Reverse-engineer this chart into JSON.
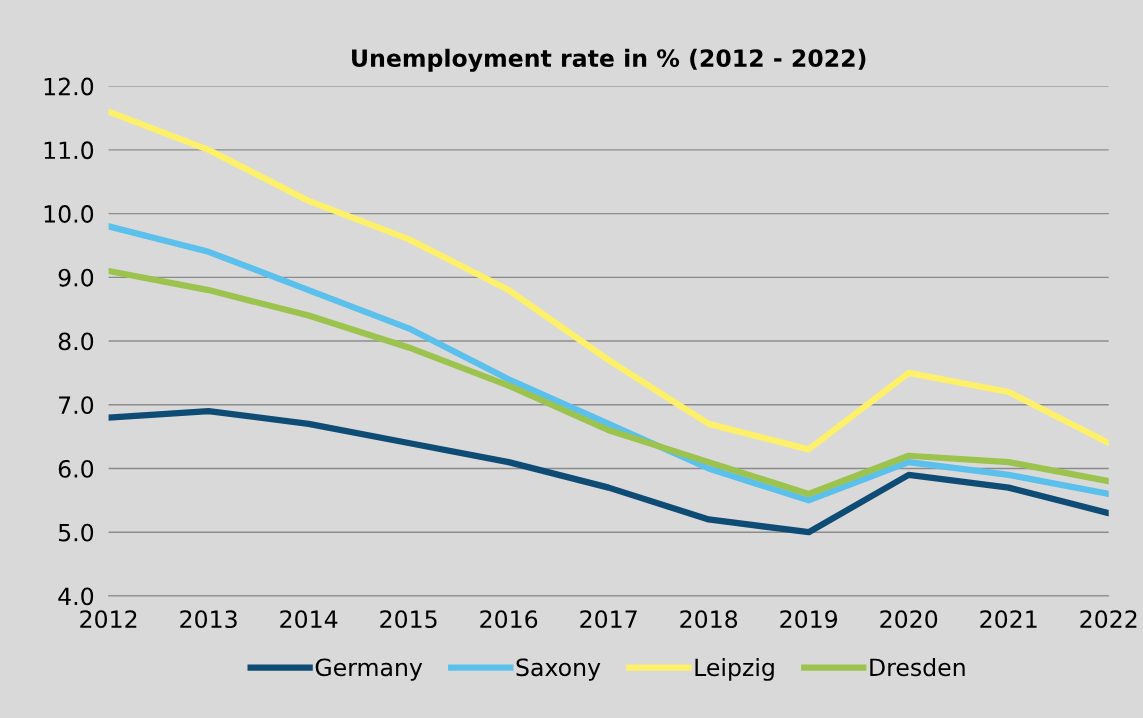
{
  "chart_data": {
    "type": "line",
    "title": "Unemployment rate in % (2012 - 2022)",
    "categories": [
      "2012",
      "2013",
      "2014",
      "2015",
      "2016",
      "2017",
      "2018",
      "2019",
      "2020",
      "2021",
      "2022"
    ],
    "series": [
      {
        "name": "Germany",
        "color": "#0f4c75",
        "values": [
          6.8,
          6.9,
          6.7,
          6.4,
          6.1,
          5.7,
          5.2,
          5.0,
          5.9,
          5.7,
          5.3
        ]
      },
      {
        "name": "Saxony",
        "color": "#5bc0eb",
        "values": [
          9.8,
          9.4,
          8.8,
          8.2,
          7.4,
          6.7,
          6.0,
          5.5,
          6.1,
          5.9,
          5.6
        ]
      },
      {
        "name": "Leipzig",
        "color": "#fdf06a",
        "values": [
          11.6,
          11.0,
          10.2,
          9.6,
          8.8,
          7.7,
          6.7,
          6.3,
          7.5,
          7.2,
          6.4
        ]
      },
      {
        "name": "Dresden",
        "color": "#9bc34d",
        "values": [
          9.1,
          8.8,
          8.4,
          7.9,
          7.3,
          6.6,
          6.1,
          5.6,
          6.2,
          6.1,
          5.8
        ]
      }
    ],
    "ylim": [
      4,
      12
    ],
    "yticks": [
      {
        "value": 4,
        "label": "4.0"
      },
      {
        "value": 5,
        "label": "5.0"
      },
      {
        "value": 6,
        "label": "6.0"
      },
      {
        "value": 7,
        "label": "7.0"
      },
      {
        "value": 8,
        "label": "8.0"
      },
      {
        "value": 9,
        "label": "9.0"
      },
      {
        "value": 10,
        "label": "10.0"
      },
      {
        "value": 11,
        "label": "11.0"
      },
      {
        "value": 12,
        "label": "12.0"
      }
    ],
    "grid": "y",
    "legend": "bottom",
    "marker": "none",
    "line_style": "solid"
  }
}
